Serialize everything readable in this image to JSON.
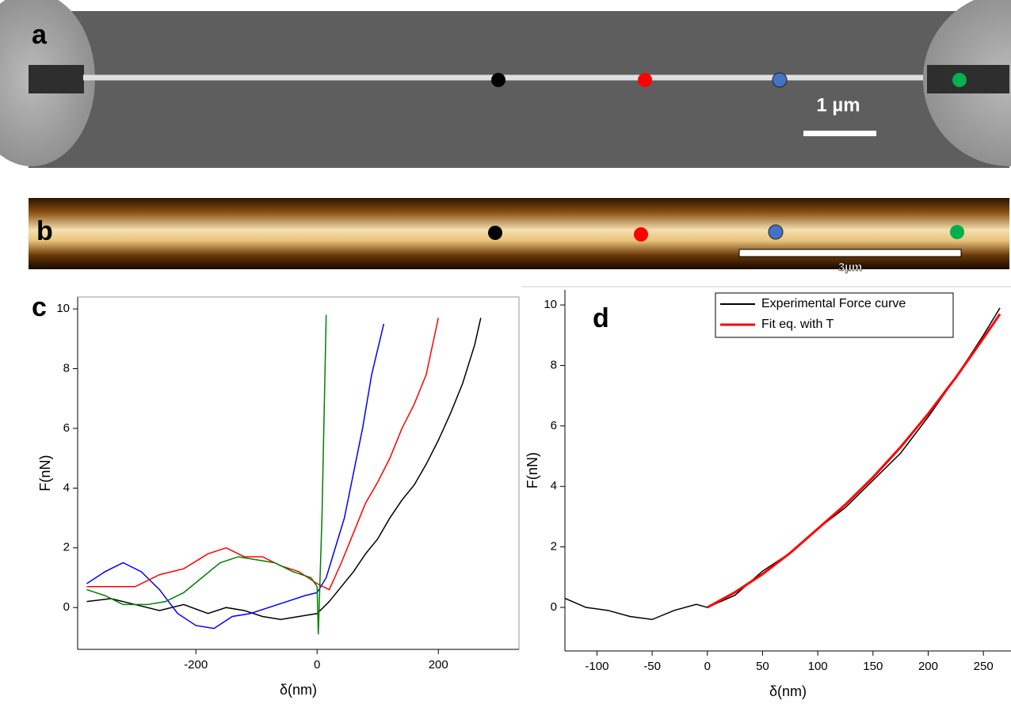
{
  "panel_a": {
    "label": "a",
    "scale_bar": "1  µm"
  },
  "panel_b": {
    "label": "b",
    "scale_bar": "3µm"
  },
  "chart_data": [
    {
      "type": "line",
      "panel": "c",
      "xlabel": "δ(nm)",
      "ylabel": "F(nN)",
      "xlim": [
        -395,
        333
      ],
      "ylim": [
        -1.4,
        10.4
      ],
      "xticks": [
        -200,
        0,
        200
      ],
      "yticks": [
        0,
        2,
        4,
        6,
        8,
        10
      ],
      "series": [
        {
          "color": "#000000",
          "x": [
            -380,
            -340,
            -300,
            -260,
            -220,
            -180,
            -150,
            -120,
            -90,
            -60,
            -30,
            0,
            20,
            40,
            60,
            80,
            100,
            120,
            140,
            160,
            180,
            200,
            220,
            240,
            260,
            270
          ],
          "values": [
            0.2,
            0.3,
            0.1,
            -0.1,
            0.1,
            -0.2,
            0.0,
            -0.1,
            -0.3,
            -0.4,
            -0.3,
            -0.2,
            0.2,
            0.7,
            1.2,
            1.8,
            2.3,
            3.0,
            3.6,
            4.1,
            4.8,
            5.6,
            6.5,
            7.5,
            8.8,
            9.7
          ]
        },
        {
          "color": "#0000ff",
          "x": [
            -380,
            -350,
            -320,
            -290,
            -260,
            -230,
            -200,
            -170,
            -140,
            -110,
            -80,
            -50,
            -20,
            0,
            15,
            30,
            45,
            60,
            75,
            90,
            110
          ],
          "values": [
            0.8,
            1.2,
            1.5,
            1.2,
            0.6,
            -0.2,
            -0.6,
            -0.7,
            -0.3,
            -0.2,
            0.0,
            0.2,
            0.4,
            0.5,
            1.0,
            2.0,
            3.0,
            4.5,
            6.0,
            7.8,
            9.5
          ]
        },
        {
          "color": "#ff0000",
          "x": [
            -380,
            -340,
            -300,
            -260,
            -220,
            -180,
            -150,
            -120,
            -90,
            -60,
            -30,
            0,
            20,
            40,
            60,
            80,
            100,
            120,
            140,
            160,
            180,
            200
          ],
          "values": [
            0.7,
            0.7,
            0.7,
            1.1,
            1.3,
            1.8,
            2.0,
            1.7,
            1.7,
            1.4,
            1.2,
            0.8,
            0.6,
            1.5,
            2.5,
            3.5,
            4.2,
            5.0,
            6.0,
            6.8,
            7.8,
            9.7
          ]
        },
        {
          "color": "#008000",
          "x": [
            -380,
            -350,
            -320,
            -280,
            -250,
            -220,
            -190,
            -160,
            -130,
            -100,
            -70,
            -40,
            -10,
            0,
            2,
            8,
            15
          ],
          "values": [
            0.6,
            0.4,
            0.1,
            0.1,
            0.2,
            0.5,
            1.0,
            1.5,
            1.7,
            1.6,
            1.5,
            1.2,
            1.0,
            0.7,
            -0.9,
            3.0,
            9.8
          ]
        }
      ]
    },
    {
      "type": "line",
      "panel": "d",
      "xlabel": "δ(nm)",
      "ylabel": "F(nN)",
      "xlim": [
        -129,
        275
      ],
      "ylim": [
        -1.44,
        10.5
      ],
      "xticks": [
        -100,
        -50,
        0,
        50,
        100,
        150,
        200,
        250
      ],
      "yticks": [
        0,
        2,
        4,
        6,
        8,
        10
      ],
      "legend": "upper right",
      "series": [
        {
          "name": "Experimental Force curve",
          "color": "#000000",
          "x": [
            -129,
            -110,
            -90,
            -70,
            -50,
            -30,
            -10,
            0,
            25,
            50,
            75,
            100,
            125,
            150,
            175,
            200,
            225,
            250,
            265
          ],
          "values": [
            0.3,
            0.0,
            -0.1,
            -0.3,
            -0.4,
            -0.1,
            0.1,
            0.0,
            0.4,
            1.2,
            1.8,
            2.6,
            3.3,
            4.2,
            5.1,
            6.3,
            7.6,
            9.0,
            9.9
          ]
        },
        {
          "name": "Fit eq. with T",
          "color": "#ff0000",
          "x": [
            0,
            25,
            50,
            75,
            100,
            125,
            150,
            175,
            200,
            225,
            250,
            265
          ],
          "values": [
            0,
            0.5,
            1.1,
            1.8,
            2.6,
            3.4,
            4.3,
            5.3,
            6.4,
            7.6,
            8.9,
            9.7
          ]
        }
      ]
    }
  ]
}
